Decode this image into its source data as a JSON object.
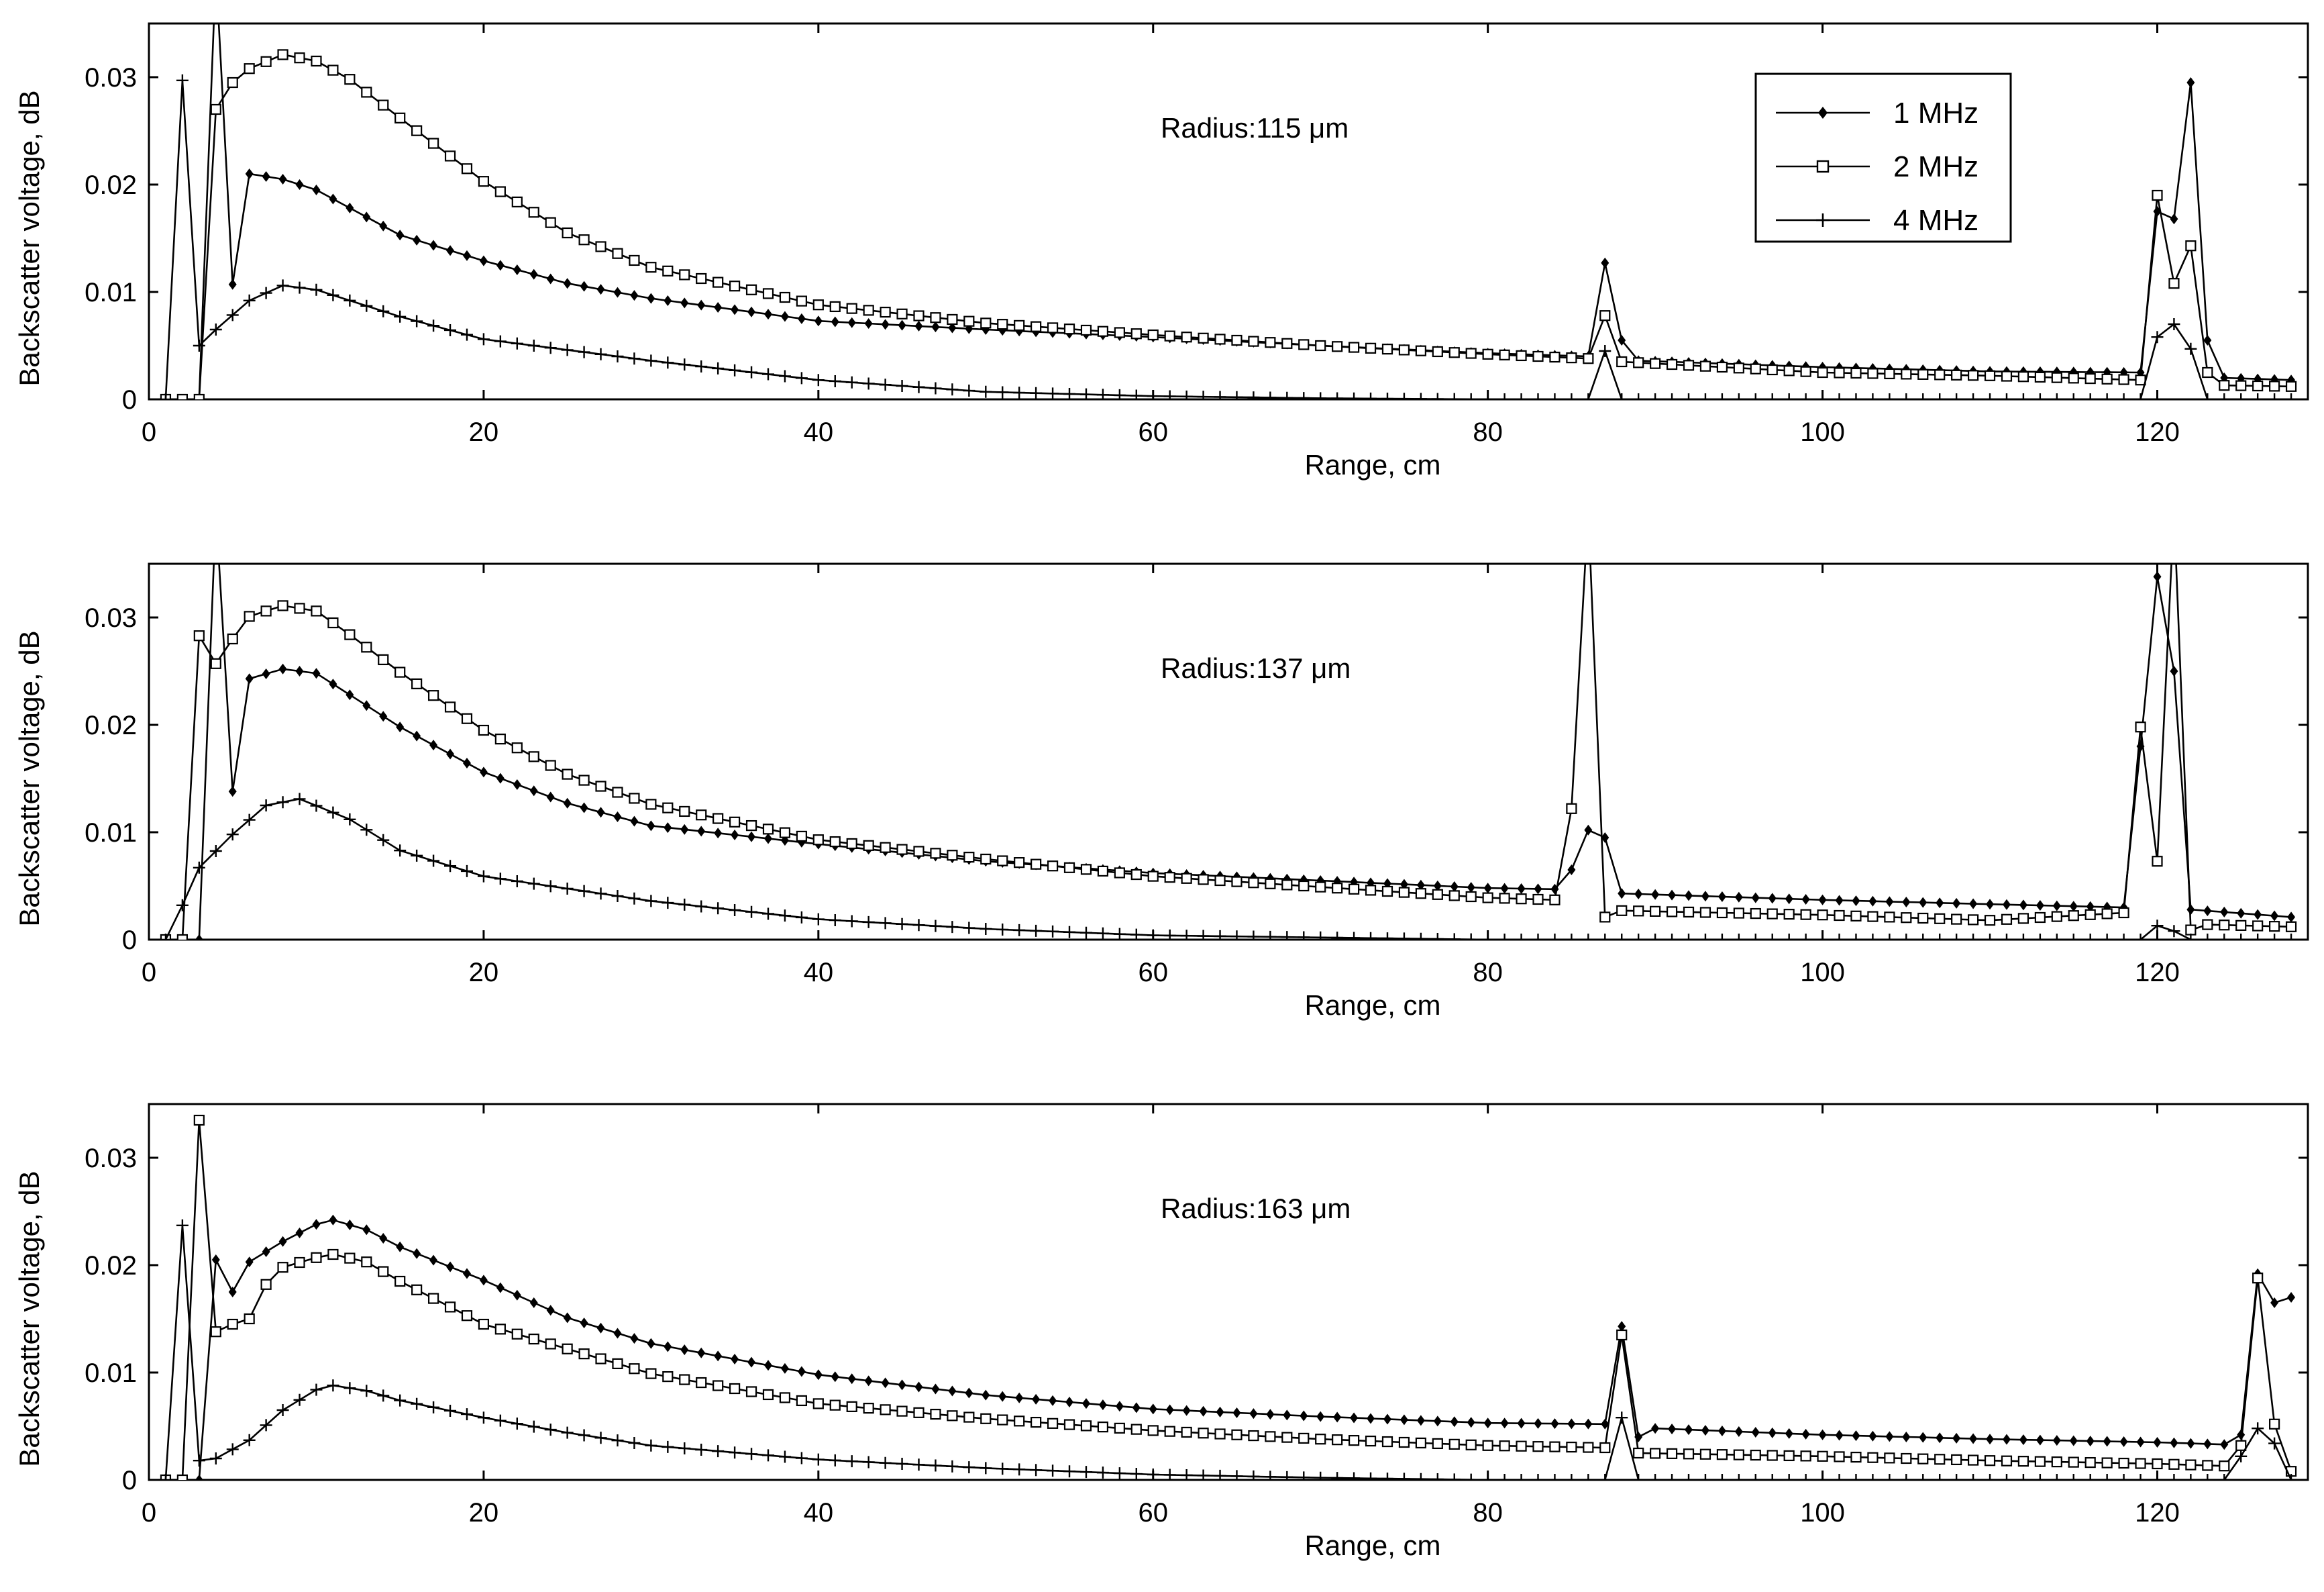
{
  "chart_data": [
    {
      "type": "line",
      "annotation": "Radius:115 μm",
      "xlabel": "Range, cm",
      "ylabel": "Backscatter voltage, dB",
      "xlim": [
        0,
        129
      ],
      "ylim": [
        0,
        0.035
      ],
      "xticks": [
        0,
        20,
        40,
        60,
        80,
        100,
        120
      ],
      "yticks": [
        0,
        0.01,
        0.02,
        0.03
      ],
      "ytick_labels": [
        "0",
        "0.01",
        "0.02",
        "0.03"
      ],
      "legend": {
        "position": "top-right",
        "entries": [
          "1 MHz",
          "2 MHz",
          "4 MHz"
        ]
      },
      "series": [
        {
          "name": "1 MHz",
          "marker": "dot",
          "keypoints": [
            [
              1,
              0
            ],
            [
              3,
              0
            ],
            [
              4,
              0.04
            ],
            [
              5,
              0.0107
            ],
            [
              6,
              0.021
            ],
            [
              8,
              0.0205
            ],
            [
              10,
              0.0195
            ],
            [
              15,
              0.0153
            ],
            [
              20,
              0.0129
            ],
            [
              25,
              0.0108
            ],
            [
              30,
              0.0094
            ],
            [
              40,
              0.0073
            ],
            [
              50,
              0.0065
            ],
            [
              60,
              0.0058
            ],
            [
              70,
              0.005
            ],
            [
              80,
              0.0043
            ],
            [
              86,
              0.004
            ],
            [
              87,
              0.0127
            ],
            [
              88,
              0.0055
            ],
            [
              89,
              0.0036
            ],
            [
              100,
              0.003
            ],
            [
              110,
              0.0026
            ],
            [
              119,
              0.0025
            ],
            [
              120,
              0.0175
            ],
            [
              121,
              0.0168
            ],
            [
              122,
              0.0295
            ],
            [
              123,
              0.0055
            ],
            [
              124,
              0.002
            ],
            [
              128,
              0.0018
            ]
          ]
        },
        {
          "name": "2 MHz",
          "marker": "square",
          "keypoints": [
            [
              1,
              0
            ],
            [
              3,
              0
            ],
            [
              4,
              0.027
            ],
            [
              5,
              0.0295
            ],
            [
              6,
              0.0308
            ],
            [
              8,
              0.0321
            ],
            [
              10,
              0.0315
            ],
            [
              12,
              0.0298
            ],
            [
              15,
              0.0262
            ],
            [
              20,
              0.0203
            ],
            [
              25,
              0.0155
            ],
            [
              30,
              0.0123
            ],
            [
              40,
              0.0088
            ],
            [
              50,
              0.0071
            ],
            [
              60,
              0.006
            ],
            [
              70,
              0.005
            ],
            [
              80,
              0.0042
            ],
            [
              86,
              0.0038
            ],
            [
              87,
              0.0078
            ],
            [
              88,
              0.0035
            ],
            [
              100,
              0.0025
            ],
            [
              110,
              0.0022
            ],
            [
              119,
              0.0018
            ],
            [
              120,
              0.019
            ],
            [
              121,
              0.0108
            ],
            [
              122,
              0.0143
            ],
            [
              123,
              0.0025
            ],
            [
              124,
              0.0013
            ],
            [
              128,
              0.0012
            ]
          ]
        },
        {
          "name": "4 MHz",
          "marker": "plus",
          "keypoints": [
            [
              1,
              0
            ],
            [
              2,
              0.0297
            ],
            [
              3,
              0.005
            ],
            [
              4,
              0.0065
            ],
            [
              6,
              0.0092
            ],
            [
              8,
              0.0106
            ],
            [
              10,
              0.0102
            ],
            [
              15,
              0.0077
            ],
            [
              20,
              0.0056
            ],
            [
              30,
              0.0036
            ],
            [
              40,
              0.0018
            ],
            [
              50,
              0.0007
            ],
            [
              60,
              0.0003
            ],
            [
              70,
              0.0001
            ],
            [
              80,
              0
            ],
            [
              86,
              0
            ],
            [
              87,
              0.0045
            ],
            [
              88,
              0
            ],
            [
              119,
              0
            ],
            [
              120,
              0.0058
            ],
            [
              121,
              0.007
            ],
            [
              122,
              0.0047
            ],
            [
              123,
              0
            ],
            [
              128,
              0
            ]
          ]
        }
      ]
    },
    {
      "type": "line",
      "annotation": "Radius:137 μm",
      "xlabel": "Range, cm",
      "ylabel": "Backscatter voltage, dB",
      "xlim": [
        0,
        129
      ],
      "ylim": [
        0,
        0.035
      ],
      "xticks": [
        0,
        20,
        40,
        60,
        80,
        100,
        120
      ],
      "yticks": [
        0,
        0.01,
        0.02,
        0.03
      ],
      "ytick_labels": [
        "0",
        "0.01",
        "0.02",
        "0.03"
      ],
      "series": [
        {
          "name": "1 MHz",
          "marker": "dot",
          "keypoints": [
            [
              1,
              0
            ],
            [
              3,
              0
            ],
            [
              4,
              0.04
            ],
            [
              5,
              0.0138
            ],
            [
              6,
              0.0243
            ],
            [
              8,
              0.0252
            ],
            [
              10,
              0.0248
            ],
            [
              15,
              0.0198
            ],
            [
              20,
              0.0156
            ],
            [
              25,
              0.0127
            ],
            [
              30,
              0.0106
            ],
            [
              40,
              0.0089
            ],
            [
              50,
              0.0073
            ],
            [
              60,
              0.0062
            ],
            [
              70,
              0.0055
            ],
            [
              80,
              0.0048
            ],
            [
              84,
              0.0047
            ],
            [
              85,
              0.0065
            ],
            [
              86,
              0.0102
            ],
            [
              87,
              0.0095
            ],
            [
              88,
              0.0043
            ],
            [
              100,
              0.0037
            ],
            [
              110,
              0.0033
            ],
            [
              118,
              0.003
            ],
            [
              119,
              0.018
            ],
            [
              120,
              0.0338
            ],
            [
              121,
              0.025
            ],
            [
              122,
              0.0028
            ],
            [
              128,
              0.0021
            ]
          ]
        },
        {
          "name": "2 MHz",
          "marker": "square",
          "keypoints": [
            [
              1,
              0
            ],
            [
              2,
              0
            ],
            [
              3,
              0.0283
            ],
            [
              4,
              0.0257
            ],
            [
              5,
              0.028
            ],
            [
              6,
              0.0301
            ],
            [
              8,
              0.0311
            ],
            [
              10,
              0.0306
            ],
            [
              12,
              0.0284
            ],
            [
              15,
              0.0249
            ],
            [
              20,
              0.0195
            ],
            [
              25,
              0.0154
            ],
            [
              30,
              0.0126
            ],
            [
              40,
              0.0093
            ],
            [
              50,
              0.0075
            ],
            [
              60,
              0.0059
            ],
            [
              70,
              0.0049
            ],
            [
              80,
              0.0039
            ],
            [
              84,
              0.0037
            ],
            [
              85,
              0.0122
            ],
            [
              86,
              0.04
            ],
            [
              87,
              0.0021
            ],
            [
              88,
              0.0027
            ],
            [
              100,
              0.0023
            ],
            [
              110,
              0.0018
            ],
            [
              118,
              0.0025
            ],
            [
              119,
              0.0198
            ],
            [
              120,
              0.0073
            ],
            [
              121,
              0.04
            ],
            [
              122,
              0.0009
            ],
            [
              123,
              0.0014
            ],
            [
              128,
              0.0012
            ]
          ]
        },
        {
          "name": "4 MHz",
          "marker": "plus",
          "keypoints": [
            [
              1,
              0
            ],
            [
              2,
              0.0032
            ],
            [
              3,
              0.0067
            ],
            [
              5,
              0.0098
            ],
            [
              7,
              0.0125
            ],
            [
              9,
              0.0131
            ],
            [
              12,
              0.0112
            ],
            [
              15,
              0.0083
            ],
            [
              20,
              0.0059
            ],
            [
              30,
              0.0036
            ],
            [
              40,
              0.0019
            ],
            [
              50,
              0.001
            ],
            [
              60,
              0.0004
            ],
            [
              70,
              0.0002
            ],
            [
              80,
              0
            ],
            [
              84,
              0
            ],
            [
              119,
              0
            ],
            [
              120,
              0.0013
            ],
            [
              121,
              0.0008
            ],
            [
              122,
              0
            ],
            [
              128,
              0
            ]
          ]
        }
      ]
    },
    {
      "type": "line",
      "annotation": "Radius:163 μm",
      "xlabel": "Range, cm",
      "ylabel": "Backscatter voltage, dB",
      "xlim": [
        0,
        129
      ],
      "ylim": [
        0,
        0.035
      ],
      "xticks": [
        0,
        20,
        40,
        60,
        80,
        100,
        120
      ],
      "yticks": [
        0,
        0.01,
        0.02,
        0.03
      ],
      "ytick_labels": [
        "0",
        "0.01",
        "0.02",
        "0.03"
      ],
      "series": [
        {
          "name": "1 MHz",
          "marker": "dot",
          "keypoints": [
            [
              1,
              0
            ],
            [
              2,
              0
            ],
            [
              3,
              0
            ],
            [
              4,
              0.0205
            ],
            [
              5,
              0.0175
            ],
            [
              6,
              0.0203
            ],
            [
              8,
              0.0222
            ],
            [
              10,
              0.0238
            ],
            [
              11,
              0.0242
            ],
            [
              13,
              0.0233
            ],
            [
              15,
              0.0217
            ],
            [
              20,
              0.0186
            ],
            [
              25,
              0.0151
            ],
            [
              30,
              0.0127
            ],
            [
              40,
              0.0098
            ],
            [
              50,
              0.0079
            ],
            [
              60,
              0.0066
            ],
            [
              70,
              0.0059
            ],
            [
              80,
              0.0053
            ],
            [
              87,
              0.0052
            ],
            [
              88,
              0.0143
            ],
            [
              89,
              0.004
            ],
            [
              90,
              0.0048
            ],
            [
              100,
              0.0042
            ],
            [
              110,
              0.0038
            ],
            [
              120,
              0.0035
            ],
            [
              124,
              0.0033
            ],
            [
              125,
              0.0042
            ],
            [
              126,
              0.0192
            ],
            [
              127,
              0.0165
            ],
            [
              128,
              0.017
            ]
          ]
        },
        {
          "name": "2 MHz",
          "marker": "square",
          "keypoints": [
            [
              1,
              0
            ],
            [
              2,
              0
            ],
            [
              3,
              0.0335
            ],
            [
              4,
              0.0138
            ],
            [
              5,
              0.0145
            ],
            [
              6,
              0.015
            ],
            [
              7,
              0.0182
            ],
            [
              8,
              0.0198
            ],
            [
              10,
              0.0207
            ],
            [
              11,
              0.021
            ],
            [
              13,
              0.0203
            ],
            [
              15,
              0.0185
            ],
            [
              20,
              0.0145
            ],
            [
              25,
              0.0122
            ],
            [
              30,
              0.0099
            ],
            [
              40,
              0.0071
            ],
            [
              50,
              0.0057
            ],
            [
              60,
              0.0046
            ],
            [
              70,
              0.0038
            ],
            [
              80,
              0.0032
            ],
            [
              87,
              0.003
            ],
            [
              88,
              0.0135
            ],
            [
              89,
              0.0025
            ],
            [
              100,
              0.0022
            ],
            [
              110,
              0.0018
            ],
            [
              120,
              0.0015
            ],
            [
              124,
              0.0013
            ],
            [
              125,
              0.0032
            ],
            [
              126,
              0.0188
            ],
            [
              127,
              0.0052
            ],
            [
              128,
              0.0008
            ]
          ]
        },
        {
          "name": "4 MHz",
          "marker": "plus",
          "keypoints": [
            [
              1,
              0
            ],
            [
              2,
              0.0237
            ],
            [
              3,
              0.0018
            ],
            [
              4,
              0.002
            ],
            [
              6,
              0.0037
            ],
            [
              8,
              0.0065
            ],
            [
              10,
              0.0084
            ],
            [
              11,
              0.0088
            ],
            [
              13,
              0.0083
            ],
            [
              15,
              0.0074
            ],
            [
              20,
              0.0058
            ],
            [
              25,
              0.0044
            ],
            [
              30,
              0.0032
            ],
            [
              40,
              0.0019
            ],
            [
              50,
              0.0011
            ],
            [
              60,
              0.0005
            ],
            [
              70,
              0.0002
            ],
            [
              80,
              0
            ],
            [
              87,
              0
            ],
            [
              88,
              0.0058
            ],
            [
              89,
              0
            ],
            [
              124,
              0
            ],
            [
              125,
              0.0022
            ],
            [
              126,
              0.0048
            ],
            [
              127,
              0.0034
            ],
            [
              128,
              0
            ]
          ]
        }
      ]
    }
  ]
}
